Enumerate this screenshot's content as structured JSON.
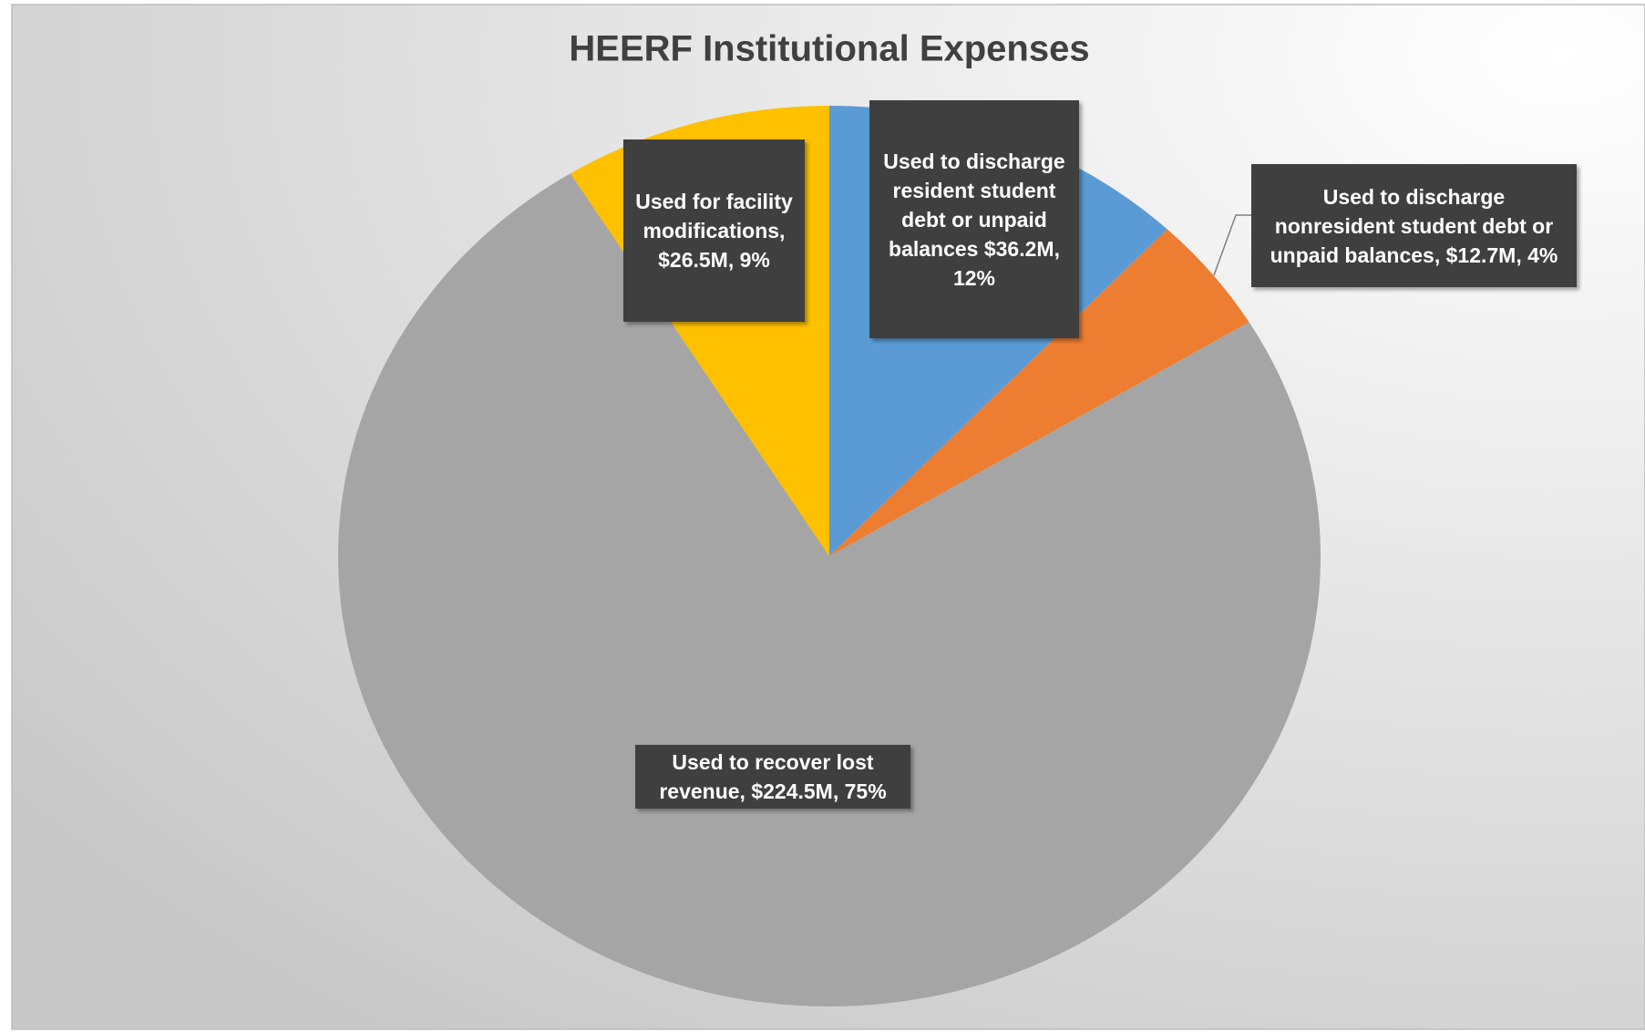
{
  "chart_data": {
    "type": "pie",
    "title": "HEERF Institutional Expenses",
    "values": [
      36.2,
      12.7,
      224.5,
      26.5
    ],
    "value_labels": [
      "Used to discharge resident student debt or unpaid balances $36.2M, 12%",
      "Used to discharge nonresident student debt or unpaid balances, $12.7M, 4%",
      "Used to recover lost revenue, $224.5M, 75%",
      "Used for facility modifications, $26.5M, 9%"
    ],
    "colors": [
      "#5b9bd5",
      "#ed7d31",
      "#a5a5a5",
      "#ffc000"
    ]
  }
}
